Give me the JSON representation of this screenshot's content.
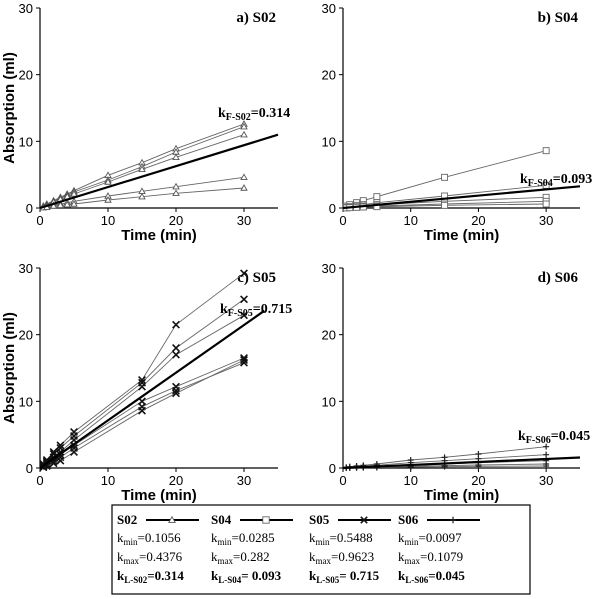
{
  "chart_data": [
    {
      "panel": "a",
      "type": "line",
      "title": "a) S02",
      "xlabel": "Time (min)",
      "ylabel": "Absorption (ml)",
      "xlim": [
        0,
        35
      ],
      "ylim": [
        0,
        30
      ],
      "xticks": [
        "0",
        "10",
        "20",
        "30"
      ],
      "yticks": [
        "0",
        "10",
        "20",
        "30"
      ],
      "show_xlabel": true,
      "show_ylabel": true,
      "marker": "triangle",
      "fit": {
        "label_main": "k",
        "label_sub": "F-S02",
        "label_value": "=0.314",
        "k": 0.314,
        "x_end": 35
      },
      "series": [
        {
          "x": [
            0.5,
            1,
            2,
            3,
            4,
            5,
            10,
            15,
            20,
            30
          ],
          "y": [
            0.3,
            0.6,
            1.1,
            1.6,
            2.1,
            2.6,
            4.9,
            6.8,
            8.9,
            12.6
          ]
        },
        {
          "x": [
            0.5,
            1,
            2,
            3,
            4,
            5,
            10,
            15,
            20,
            30
          ],
          "y": [
            0.2,
            0.5,
            1.0,
            1.5,
            1.9,
            2.4,
            4.2,
            6.2,
            8.4,
            12.2
          ]
        },
        {
          "x": [
            0.5,
            1,
            2,
            3,
            4,
            5,
            10,
            15,
            20,
            30
          ],
          "y": [
            0.2,
            0.4,
            0.9,
            1.3,
            1.7,
            2.1,
            3.9,
            5.8,
            7.6,
            11.0
          ]
        },
        {
          "x": [
            0.5,
            1,
            2,
            3,
            4,
            5,
            10,
            15,
            20,
            30
          ],
          "y": [
            0.1,
            0.2,
            0.4,
            0.6,
            0.8,
            1.0,
            1.8,
            2.5,
            3.2,
            4.6
          ]
        },
        {
          "x": [
            0.5,
            1,
            2,
            3,
            4,
            5,
            10,
            15,
            20,
            30
          ],
          "y": [
            0.05,
            0.1,
            0.3,
            0.4,
            0.5,
            0.6,
            1.2,
            1.7,
            2.2,
            3.0
          ]
        }
      ]
    },
    {
      "panel": "b",
      "type": "line",
      "title": "b) S04",
      "xlabel": "Time (min)",
      "ylabel": "",
      "xlim": [
        0,
        35
      ],
      "ylim": [
        0,
        30
      ],
      "xticks": [
        "0",
        "10",
        "20",
        "30"
      ],
      "yticks": [
        "0",
        "10",
        "20",
        "30"
      ],
      "show_xlabel": true,
      "show_ylabel": false,
      "marker": "square",
      "fit": {
        "label_main": "k",
        "label_sub": "F-S04",
        "label_value": "=0.093",
        "k": 0.093,
        "x_end": 35
      },
      "series": [
        {
          "x": [
            0.5,
            1,
            2,
            3,
            5,
            15,
            30
          ],
          "y": [
            0.3,
            0.5,
            0.8,
            1.1,
            1.7,
            4.6,
            8.6
          ]
        },
        {
          "x": [
            0.5,
            1,
            2,
            3,
            5,
            15,
            30
          ],
          "y": [
            0.1,
            0.2,
            0.4,
            0.5,
            0.8,
            1.8,
            3.4
          ]
        },
        {
          "x": [
            0.5,
            1,
            2,
            3,
            5,
            15,
            30
          ],
          "y": [
            0.05,
            0.1,
            0.2,
            0.3,
            0.5,
            1.0,
            1.6
          ]
        },
        {
          "x": [
            0.5,
            1,
            2,
            3,
            5,
            15,
            30
          ],
          "y": [
            0.05,
            0.1,
            0.15,
            0.2,
            0.3,
            0.6,
            1.0
          ]
        },
        {
          "x": [
            0.5,
            1,
            2,
            3,
            5,
            15,
            30
          ],
          "y": [
            0.02,
            0.05,
            0.1,
            0.15,
            0.2,
            0.4,
            0.6
          ]
        }
      ]
    },
    {
      "panel": "c",
      "type": "line",
      "title": "c) S05",
      "xlabel": "Time (min)",
      "ylabel": "Absorption (ml)",
      "xlim": [
        0,
        35
      ],
      "ylim": [
        0,
        30
      ],
      "xticks": [
        "0",
        "10",
        "20",
        "30"
      ],
      "yticks": [
        "0",
        "10",
        "20",
        "30"
      ],
      "show_xlabel": true,
      "show_ylabel": true,
      "marker": "x",
      "fit": {
        "label_main": "k",
        "label_sub": "F-S05",
        "label_value": "=0.715",
        "k": 0.715,
        "x_end": 33
      },
      "series": [
        {
          "x": [
            0.5,
            1,
            2,
            3,
            5,
            15,
            20,
            30
          ],
          "y": [
            0.6,
            1.2,
            2.4,
            3.4,
            5.4,
            13.2,
            21.5,
            29.2
          ]
        },
        {
          "x": [
            0.5,
            1,
            2,
            3,
            5,
            15,
            20,
            30
          ],
          "y": [
            0.5,
            1.0,
            2.1,
            3.0,
            4.8,
            12.8,
            18.0,
            25.3
          ]
        },
        {
          "x": [
            0.5,
            1,
            2,
            3,
            5,
            15,
            20,
            30
          ],
          "y": [
            0.4,
            0.9,
            1.6,
            2.4,
            4.2,
            12.2,
            17.0,
            22.9
          ]
        },
        {
          "x": [
            0.5,
            1,
            2,
            3,
            5,
            15,
            20,
            30
          ],
          "y": [
            0.3,
            0.7,
            1.3,
            2.0,
            3.4,
            10.0,
            12.2,
            16.5
          ]
        },
        {
          "x": [
            0.5,
            1,
            2,
            3,
            5,
            15,
            20,
            30
          ],
          "y": [
            0.2,
            0.5,
            1.0,
            1.6,
            3.0,
            9.2,
            11.6,
            15.8
          ]
        },
        {
          "x": [
            0.5,
            1,
            2,
            3,
            5,
            15,
            20,
            30
          ],
          "y": [
            0.1,
            0.3,
            0.7,
            1.1,
            2.4,
            8.6,
            11.2,
            16.2
          ]
        }
      ]
    },
    {
      "panel": "d",
      "type": "line",
      "title": "d) S06",
      "xlabel": "Time (min)",
      "ylabel": "",
      "xlim": [
        0,
        35
      ],
      "ylim": [
        0,
        30
      ],
      "xticks": [
        "0",
        "10",
        "20",
        "30"
      ],
      "yticks": [
        "0",
        "10",
        "20",
        "30"
      ],
      "show_xlabel": true,
      "show_ylabel": false,
      "marker": "plus",
      "fit": {
        "label_main": "k",
        "label_sub": "F-S06",
        "label_value": "=0.045",
        "k": 0.045,
        "x_end": 35
      },
      "series": [
        {
          "x": [
            0.5,
            1,
            2,
            3,
            5,
            10,
            15,
            20,
            30
          ],
          "y": [
            0.1,
            0.2,
            0.3,
            0.4,
            0.6,
            1.2,
            1.6,
            2.1,
            3.2
          ]
        },
        {
          "x": [
            0.5,
            1,
            2,
            3,
            5,
            10,
            15,
            20,
            30
          ],
          "y": [
            0.05,
            0.1,
            0.2,
            0.3,
            0.4,
            0.8,
            1.1,
            1.4,
            2.0
          ]
        },
        {
          "x": [
            0.5,
            1,
            2,
            3,
            5,
            10,
            15,
            20,
            30
          ],
          "y": [
            0.03,
            0.05,
            0.1,
            0.15,
            0.2,
            0.4,
            0.6,
            0.8,
            1.1
          ]
        },
        {
          "x": [
            0.5,
            1,
            2,
            3,
            5,
            10,
            15,
            20,
            30
          ],
          "y": [
            0.02,
            0.03,
            0.05,
            0.1,
            0.15,
            0.25,
            0.35,
            0.45,
            0.6
          ]
        },
        {
          "x": [
            0.5,
            1,
            2,
            3,
            5,
            10,
            15,
            20,
            30
          ],
          "y": [
            0.01,
            0.02,
            0.03,
            0.05,
            0.08,
            0.15,
            0.2,
            0.25,
            0.3
          ]
        }
      ]
    }
  ],
  "legend": {
    "groups": [
      {
        "name": "S02",
        "marker": "triangle",
        "kmin_main": "k",
        "kmin_sub": "min",
        "kmin_value": "=0.1056",
        "kmax_main": "k",
        "kmax_sub": "max",
        "kmax_value": "=0.4376",
        "kl_main": "k",
        "kl_sub": "L-S02",
        "kl_value": "=0.314"
      },
      {
        "name": "S04",
        "marker": "square",
        "kmin_main": "k",
        "kmin_sub": "min",
        "kmin_value": "=0.0285",
        "kmax_main": "k",
        "kmax_sub": "max",
        "kmax_value": "=0.282",
        "kl_main": "k",
        "kl_sub": "L-S04",
        "kl_value": "= 0.093"
      },
      {
        "name": "S05",
        "marker": "x",
        "kmin_main": "k",
        "kmin_sub": "min",
        "kmin_value": "=0.5488",
        "kmax_main": "k",
        "kmax_sub": "max",
        "kmax_value": "=0.9623",
        "kl_main": "k",
        "kl_sub": "L-S05",
        "kl_value": "= 0.715"
      },
      {
        "name": "S06",
        "marker": "plus",
        "kmin_main": "k",
        "kmin_sub": "min",
        "kmin_value": "=0.0097",
        "kmax_main": "k",
        "kmax_sub": "max",
        "kmax_value": "=0.1079",
        "kl_main": "k",
        "kl_sub": "L-S06",
        "kl_value": "=0.045"
      }
    ]
  }
}
